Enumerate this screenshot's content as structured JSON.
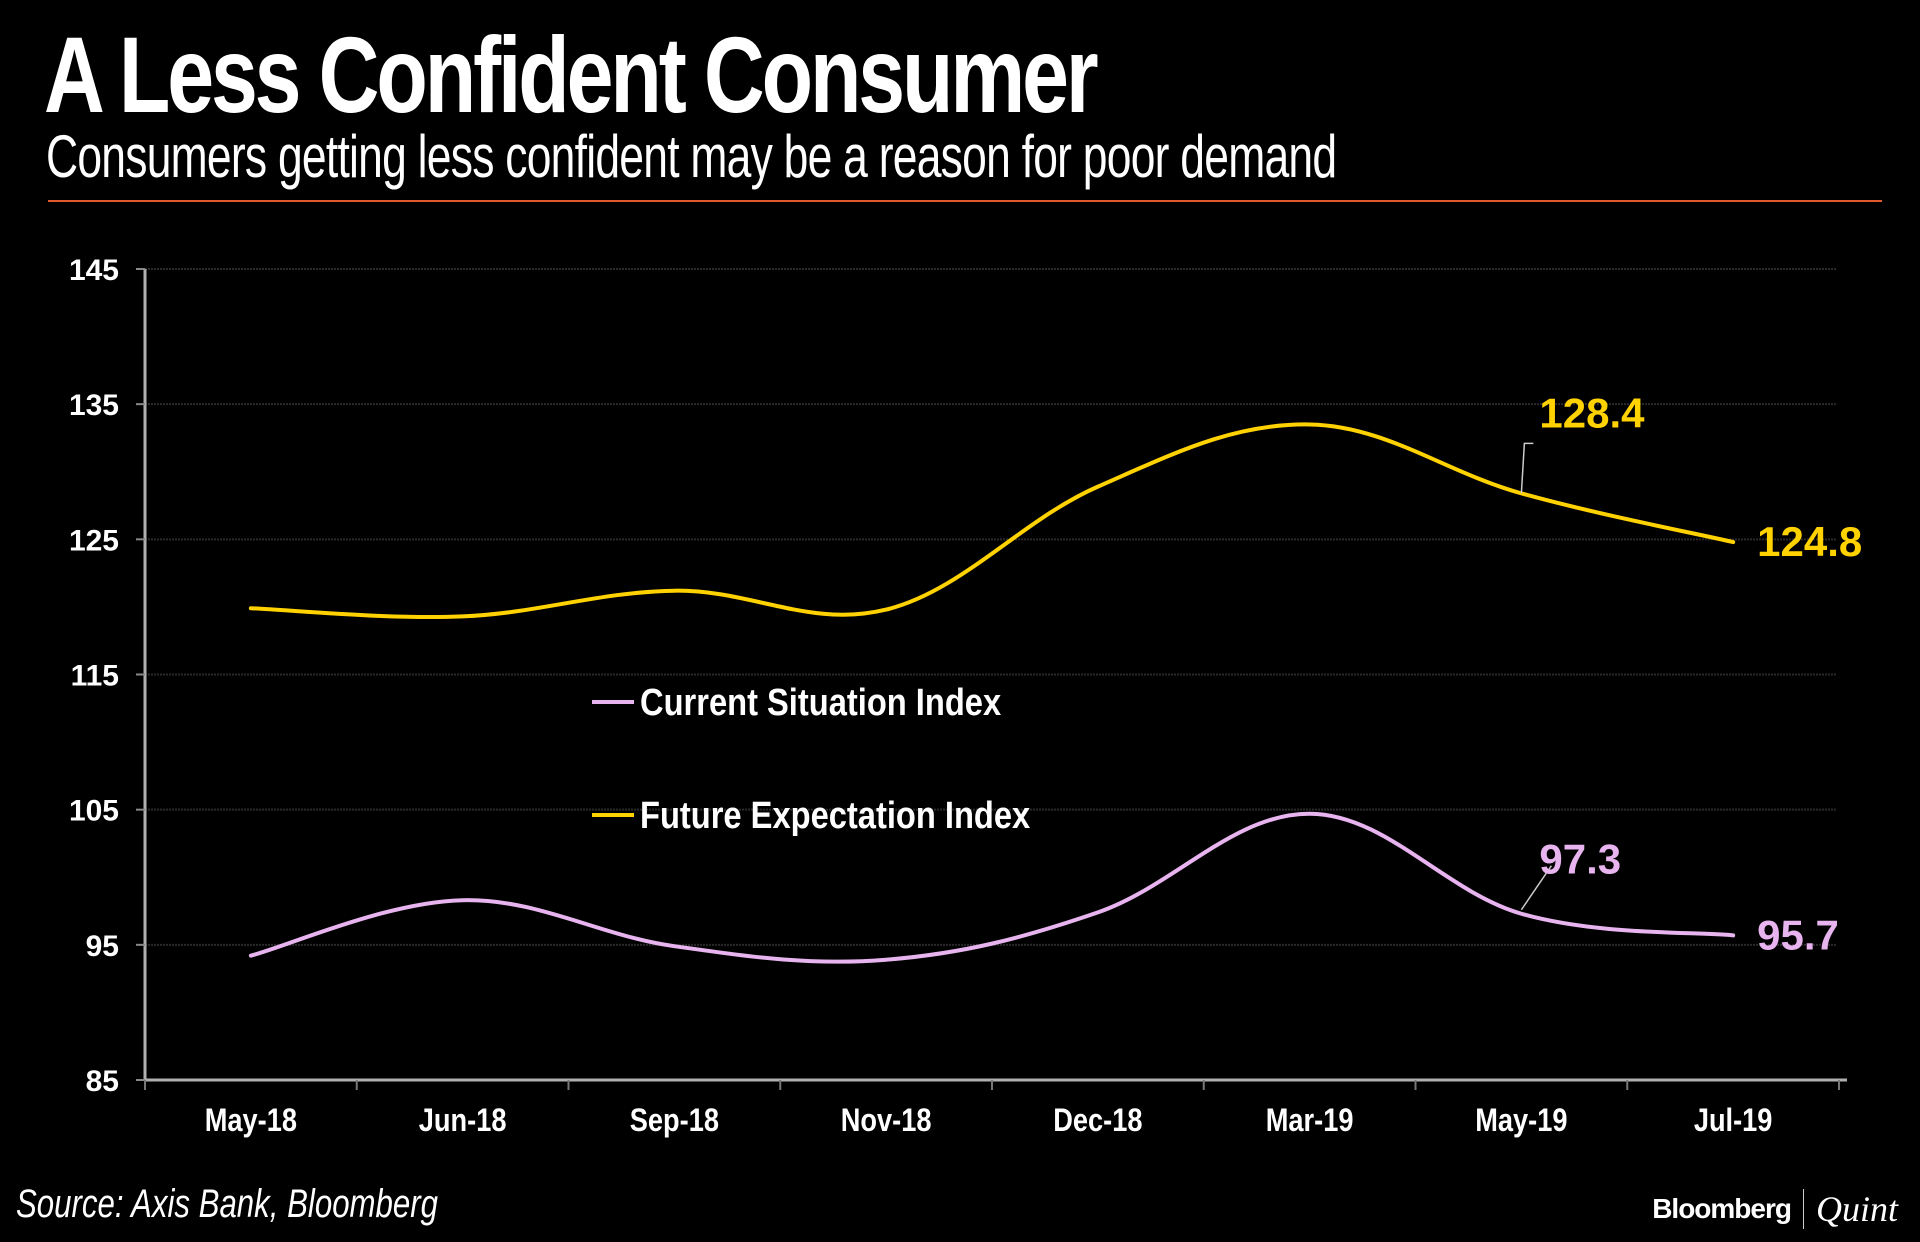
{
  "header": {
    "title": "A Less Confident Consumer",
    "subtitle": "Consumers getting less confident may be a reason for poor demand",
    "rule_color": "#e0582c"
  },
  "footer": {
    "source": "Source: Axis Bank, Bloomberg",
    "brand_primary": "Bloomberg",
    "brand_secondary": "Quint"
  },
  "chart_data": {
    "type": "line",
    "title": "A Less Confident Consumer",
    "subtitle": "Consumers getting less confident may be a reason for poor demand",
    "xlabel": "",
    "ylabel": "",
    "categories": [
      "May-18",
      "Jun-18",
      "Sep-18",
      "Nov-18",
      "Dec-18",
      "Mar-19",
      "May-19",
      "Jul-19"
    ],
    "ylim": [
      85,
      145
    ],
    "yticks": [
      85,
      95,
      105,
      115,
      125,
      135,
      145
    ],
    "grid": true,
    "legend_position": "center-left",
    "series": [
      {
        "name": "Current Situation Index",
        "color": "#e8b4f0",
        "values": [
          94.2,
          98.3,
          94.9,
          93.9,
          97.4,
          104.7,
          97.3,
          95.7
        ],
        "labels": [
          {
            "index": 6,
            "text": "97.3"
          },
          {
            "index": 7,
            "text": "95.7"
          }
        ]
      },
      {
        "name": "Future Expectation Index",
        "color": "#ffd200",
        "values": [
          119.9,
          119.3,
          121.2,
          119.8,
          128.9,
          133.5,
          128.4,
          124.8
        ],
        "labels": [
          {
            "index": 6,
            "text": "128.4"
          },
          {
            "index": 7,
            "text": "124.8"
          }
        ]
      }
    ]
  }
}
